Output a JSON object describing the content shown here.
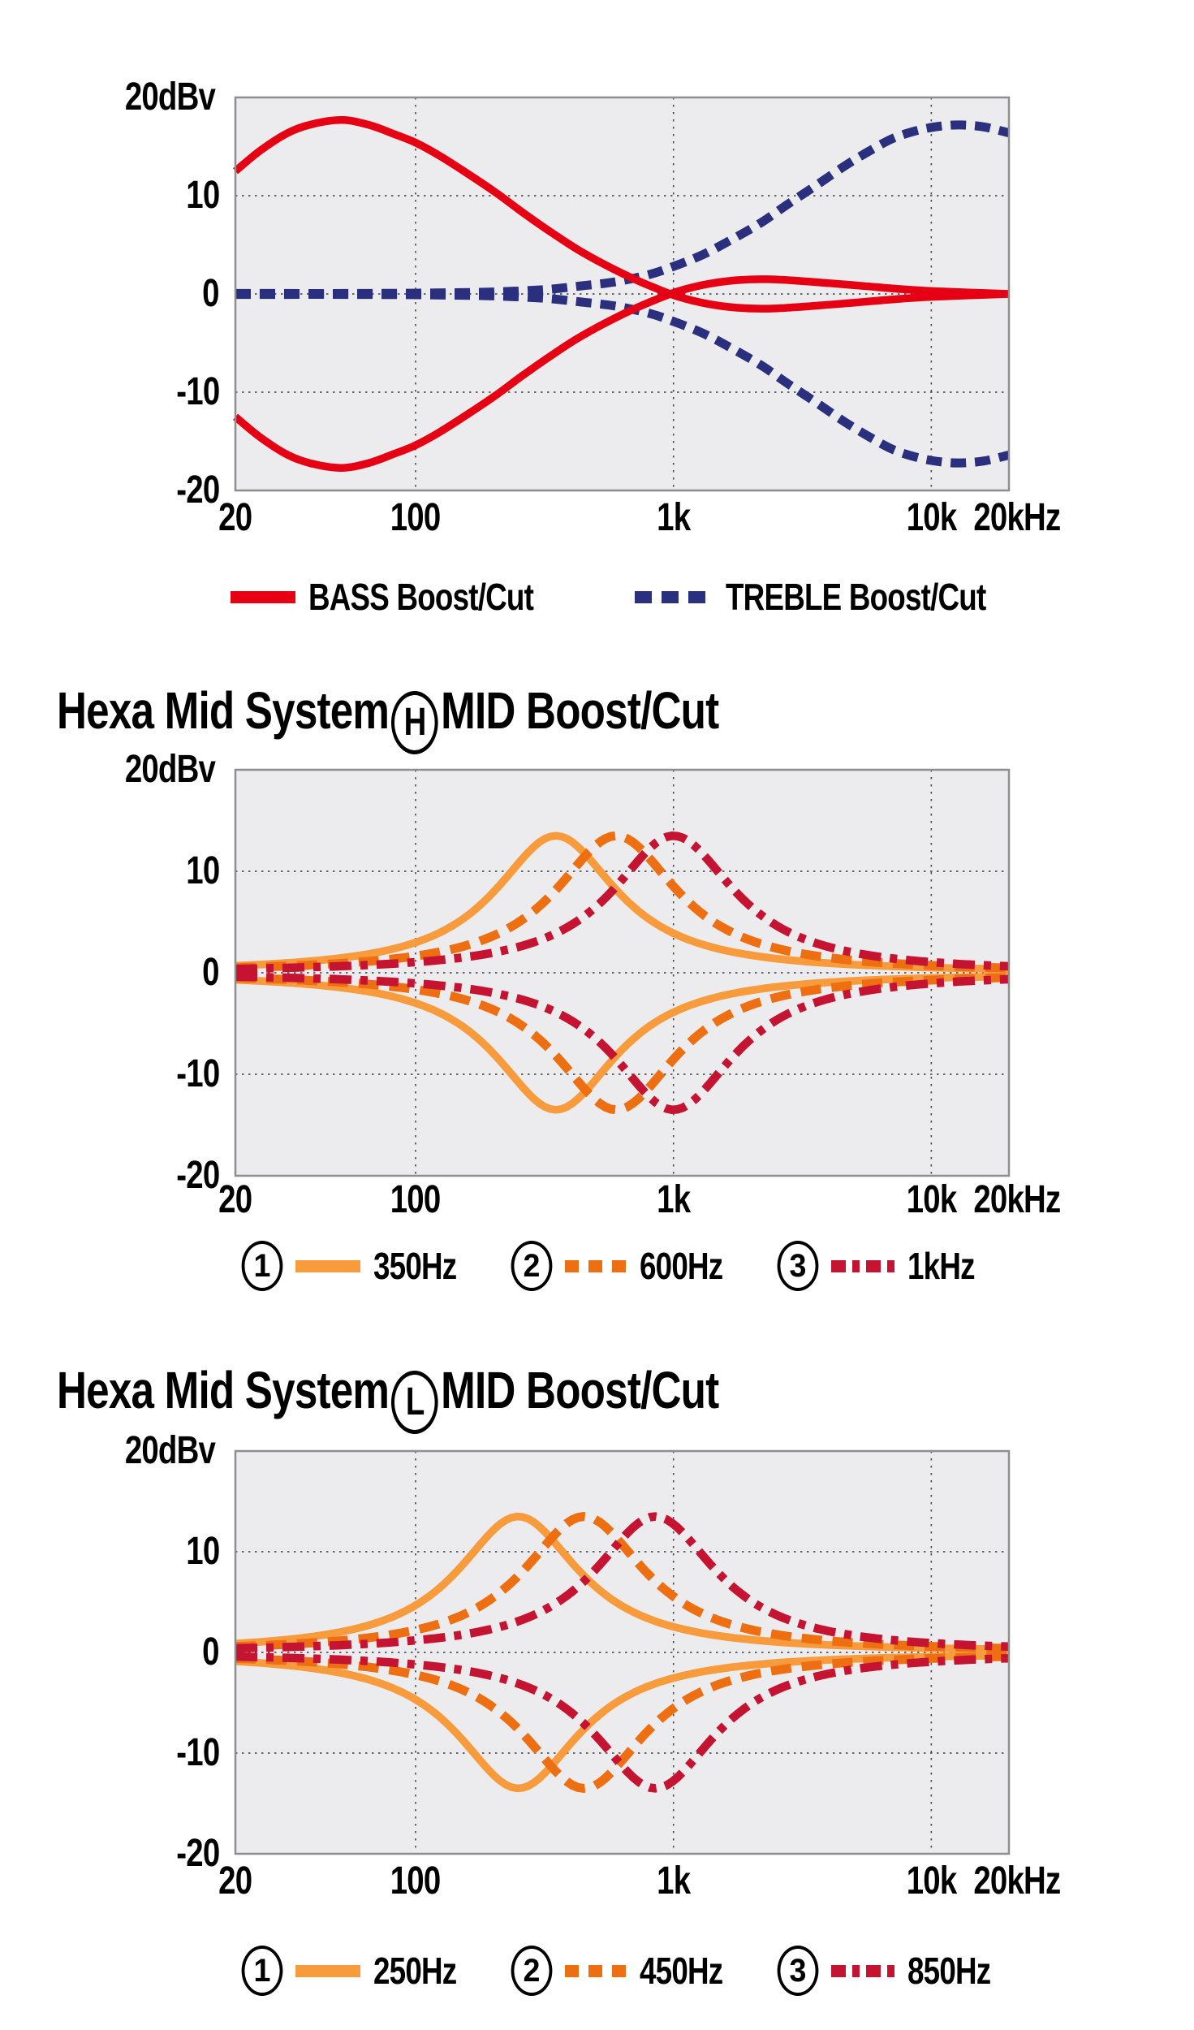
{
  "page": {
    "background": "#ffffff",
    "text_color": "#000000",
    "plot_bg": "#ececee"
  },
  "chart_data": [
    {
      "type": "line",
      "title": "",
      "ylabel": "20dBv",
      "x_scale": "log",
      "xlim_hz": [
        20,
        20000
      ],
      "ylim_db": [
        -20,
        20
      ],
      "x_ticks": [
        {
          "hz": 20,
          "label": "20"
        },
        {
          "hz": 100,
          "label": "100"
        },
        {
          "hz": 1000,
          "label": "1k"
        },
        {
          "hz": 10000,
          "label": "10k"
        },
        {
          "hz": 20000,
          "label": "20kHz"
        }
      ],
      "y_ticks": [
        {
          "db": 10,
          "label": "10"
        },
        {
          "db": 0,
          "label": "0"
        },
        {
          "db": -10,
          "label": "-10"
        },
        {
          "db": -20,
          "label": "-20"
        }
      ],
      "grid": {
        "h_db": [
          10,
          0,
          -10
        ],
        "v_hz": [
          100,
          1000,
          10000
        ]
      },
      "series": [
        {
          "name": "TREBLE Boost/Cut",
          "color": "#2a2f7e",
          "line_style": "dashed_square",
          "mirrored": true,
          "peak_db": 17.2,
          "peak_hz": 12500,
          "points_hz_db": [
            [
              20,
              0.05
            ],
            [
              60,
              0.05
            ],
            [
              120,
              0.1
            ],
            [
              200,
              0.2
            ],
            [
              320,
              0.45
            ],
            [
              450,
              0.85
            ],
            [
              600,
              1.25
            ],
            [
              800,
              1.95
            ],
            [
              1000,
              2.8
            ],
            [
              1300,
              4.0
            ],
            [
              1700,
              5.6
            ],
            [
              2200,
              7.3
            ],
            [
              2800,
              9.2
            ],
            [
              3600,
              11.1
            ],
            [
              4600,
              13.0
            ],
            [
              5800,
              14.6
            ],
            [
              7200,
              15.9
            ],
            [
              9000,
              16.7
            ],
            [
              11000,
              17.1
            ],
            [
              13000,
              17.2
            ],
            [
              16000,
              17.0
            ],
            [
              20000,
              16.4
            ]
          ]
        },
        {
          "name": "BASS Boost/Cut",
          "color": "#e60013",
          "line_style": "solid",
          "mirrored": true,
          "peak_db": 17.7,
          "peak_hz": 52,
          "points_hz_db": [
            [
              20,
              12.5
            ],
            [
              25,
              14.6
            ],
            [
              32,
              16.4
            ],
            [
              40,
              17.3
            ],
            [
              52,
              17.7
            ],
            [
              66,
              17.2
            ],
            [
              82,
              16.3
            ],
            [
              100,
              15.4
            ],
            [
              125,
              14.0
            ],
            [
              160,
              12.2
            ],
            [
              205,
              10.3
            ],
            [
              260,
              8.3
            ],
            [
              330,
              6.4
            ],
            [
              420,
              4.6
            ],
            [
              540,
              3.0
            ],
            [
              680,
              1.7
            ],
            [
              850,
              0.6
            ],
            [
              1050,
              -0.3
            ],
            [
              1350,
              -1.0
            ],
            [
              1750,
              -1.4
            ],
            [
              2300,
              -1.5
            ],
            [
              3000,
              -1.35
            ],
            [
              4000,
              -1.1
            ],
            [
              5500,
              -0.8
            ],
            [
              7500,
              -0.5
            ],
            [
              10000,
              -0.3
            ],
            [
              14000,
              -0.15
            ],
            [
              20000,
              0
            ]
          ]
        }
      ],
      "legend": [
        {
          "num": "",
          "label": "BASS Boost/Cut",
          "color": "#e60013",
          "style": "solid"
        },
        {
          "num": "",
          "label": "TREBLE Boost/Cut",
          "color": "#2a2f7e",
          "style": "dashed_square"
        }
      ]
    },
    {
      "type": "line",
      "title_prefix": "Hexa Mid System",
      "title_circle": "H",
      "title_suffix": "MID Boost/Cut",
      "ylabel": "20dBv",
      "x_scale": "log",
      "xlim_hz": [
        20,
        20000
      ],
      "ylim_db": [
        -20,
        20
      ],
      "x_ticks": [
        {
          "hz": 20,
          "label": "20"
        },
        {
          "hz": 100,
          "label": "100"
        },
        {
          "hz": 1000,
          "label": "1k"
        },
        {
          "hz": 10000,
          "label": "10k"
        },
        {
          "hz": 20000,
          "label": "20kHz"
        }
      ],
      "y_ticks": [
        {
          "db": 10,
          "label": "10"
        },
        {
          "db": 0,
          "label": "0"
        },
        {
          "db": -10,
          "label": "-10"
        },
        {
          "db": -20,
          "label": "-20"
        }
      ],
      "grid": {
        "h_db": [
          10,
          0,
          -10
        ],
        "v_hz": [
          100,
          1000,
          10000
        ]
      },
      "series": [
        {
          "name": "350Hz",
          "color": "#f89b3c",
          "line_style": "solid",
          "mirrored": true,
          "bell": {
            "center_hz": 350,
            "peak_db": 13.5,
            "width_decades": 0.29
          },
          "sample_points_hz_db": [
            [
              20,
              0.7
            ],
            [
              100,
              3.0
            ],
            [
              236,
              10
            ],
            [
              350,
              13.5
            ],
            [
              520,
              10
            ],
            [
              1000,
              3.9
            ],
            [
              2000,
              1.7
            ],
            [
              20000,
              0.4
            ]
          ]
        },
        {
          "name": "600Hz",
          "color": "#ee6f12",
          "line_style": "dashed",
          "mirrored": true,
          "bell": {
            "center_hz": 600,
            "peak_db": 13.5,
            "width_decades": 0.29
          },
          "sample_points_hz_db": [
            [
              20,
              0.5
            ],
            [
              100,
              1.65
            ],
            [
              404,
              10
            ],
            [
              600,
              13.5
            ],
            [
              890,
              10
            ],
            [
              2000,
              3.2
            ],
            [
              20000,
              0.5
            ]
          ]
        },
        {
          "name": "1kHz",
          "color": "#c51431",
          "line_style": "dashdot",
          "mirrored": true,
          "bell": {
            "center_hz": 1000,
            "peak_db": 13.5,
            "width_decades": 0.29
          },
          "sample_points_hz_db": [
            [
              20,
              0.4
            ],
            [
              100,
              1.05
            ],
            [
              673,
              10
            ],
            [
              1000,
              13.5
            ],
            [
              1485,
              10
            ],
            [
              2000,
              6.5
            ],
            [
              5000,
              2.0
            ],
            [
              20000,
              0.64
            ]
          ]
        }
      ],
      "legend": [
        {
          "num": "1",
          "label": "350Hz",
          "color": "#f89b3c",
          "style": "solid"
        },
        {
          "num": "2",
          "label": "600Hz",
          "color": "#ee6f12",
          "style": "dashed"
        },
        {
          "num": "3",
          "label": "1kHz",
          "color": "#c51431",
          "style": "dashdot"
        }
      ]
    },
    {
      "type": "line",
      "title_prefix": "Hexa Mid System",
      "title_circle": "L",
      "title_suffix": "MID Boost/Cut",
      "ylabel": "20dBv",
      "x_scale": "log",
      "xlim_hz": [
        20,
        20000
      ],
      "ylim_db": [
        -20,
        20
      ],
      "x_ticks": [
        {
          "hz": 20,
          "label": "20"
        },
        {
          "hz": 100,
          "label": "100"
        },
        {
          "hz": 1000,
          "label": "1k"
        },
        {
          "hz": 10000,
          "label": "10k"
        },
        {
          "hz": 20000,
          "label": "20kHz"
        }
      ],
      "y_ticks": [
        {
          "db": 10,
          "label": "10"
        },
        {
          "db": 0,
          "label": "0"
        },
        {
          "db": -10,
          "label": "-10"
        },
        {
          "db": -20,
          "label": "-20"
        }
      ],
      "grid": {
        "h_db": [
          10,
          0,
          -10
        ],
        "v_hz": [
          100,
          1000,
          10000
        ]
      },
      "series": [
        {
          "name": "250Hz",
          "color": "#f89b3c",
          "line_style": "solid",
          "mirrored": true,
          "bell": {
            "center_hz": 250,
            "peak_db": 13.5,
            "width_decades": 0.29
          },
          "sample_points_hz_db": [
            [
              20,
              0.88
            ],
            [
              100,
              4.7
            ],
            [
              168,
              10
            ],
            [
              250,
              13.5
            ],
            [
              371,
              10
            ],
            [
              1000,
              3.1
            ],
            [
              20000,
              0.31
            ]
          ]
        },
        {
          "name": "450Hz",
          "color": "#ee6f12",
          "line_style": "dashed",
          "mirrored": true,
          "bell": {
            "center_hz": 450,
            "peak_db": 13.5,
            "width_decades": 0.29
          },
          "sample_points_hz_db": [
            [
              20,
              0.62
            ],
            [
              100,
              2.15
            ],
            [
              303,
              10
            ],
            [
              450,
              13.5
            ],
            [
              668,
              10
            ],
            [
              2000,
              2.2
            ],
            [
              20000,
              0.42
            ]
          ]
        },
        {
          "name": "850Hz",
          "color": "#c51431",
          "line_style": "dashdot",
          "mirrored": true,
          "bell": {
            "center_hz": 850,
            "peak_db": 13.5,
            "width_decades": 0.29
          },
          "sample_points_hz_db": [
            [
              20,
              0.43
            ],
            [
              100,
              1.3
            ],
            [
              572,
              10
            ],
            [
              850,
              13.5
            ],
            [
              1263,
              10
            ],
            [
              2000,
              5.1
            ],
            [
              5000,
              1.9
            ],
            [
              20000,
              0.6
            ]
          ]
        }
      ],
      "legend": [
        {
          "num": "1",
          "label": "250Hz",
          "color": "#f89b3c",
          "style": "solid"
        },
        {
          "num": "2",
          "label": "450Hz",
          "color": "#ee6f12",
          "style": "dashed"
        },
        {
          "num": "3",
          "label": "850Hz",
          "color": "#c51431",
          "style": "dashdot"
        }
      ]
    }
  ]
}
